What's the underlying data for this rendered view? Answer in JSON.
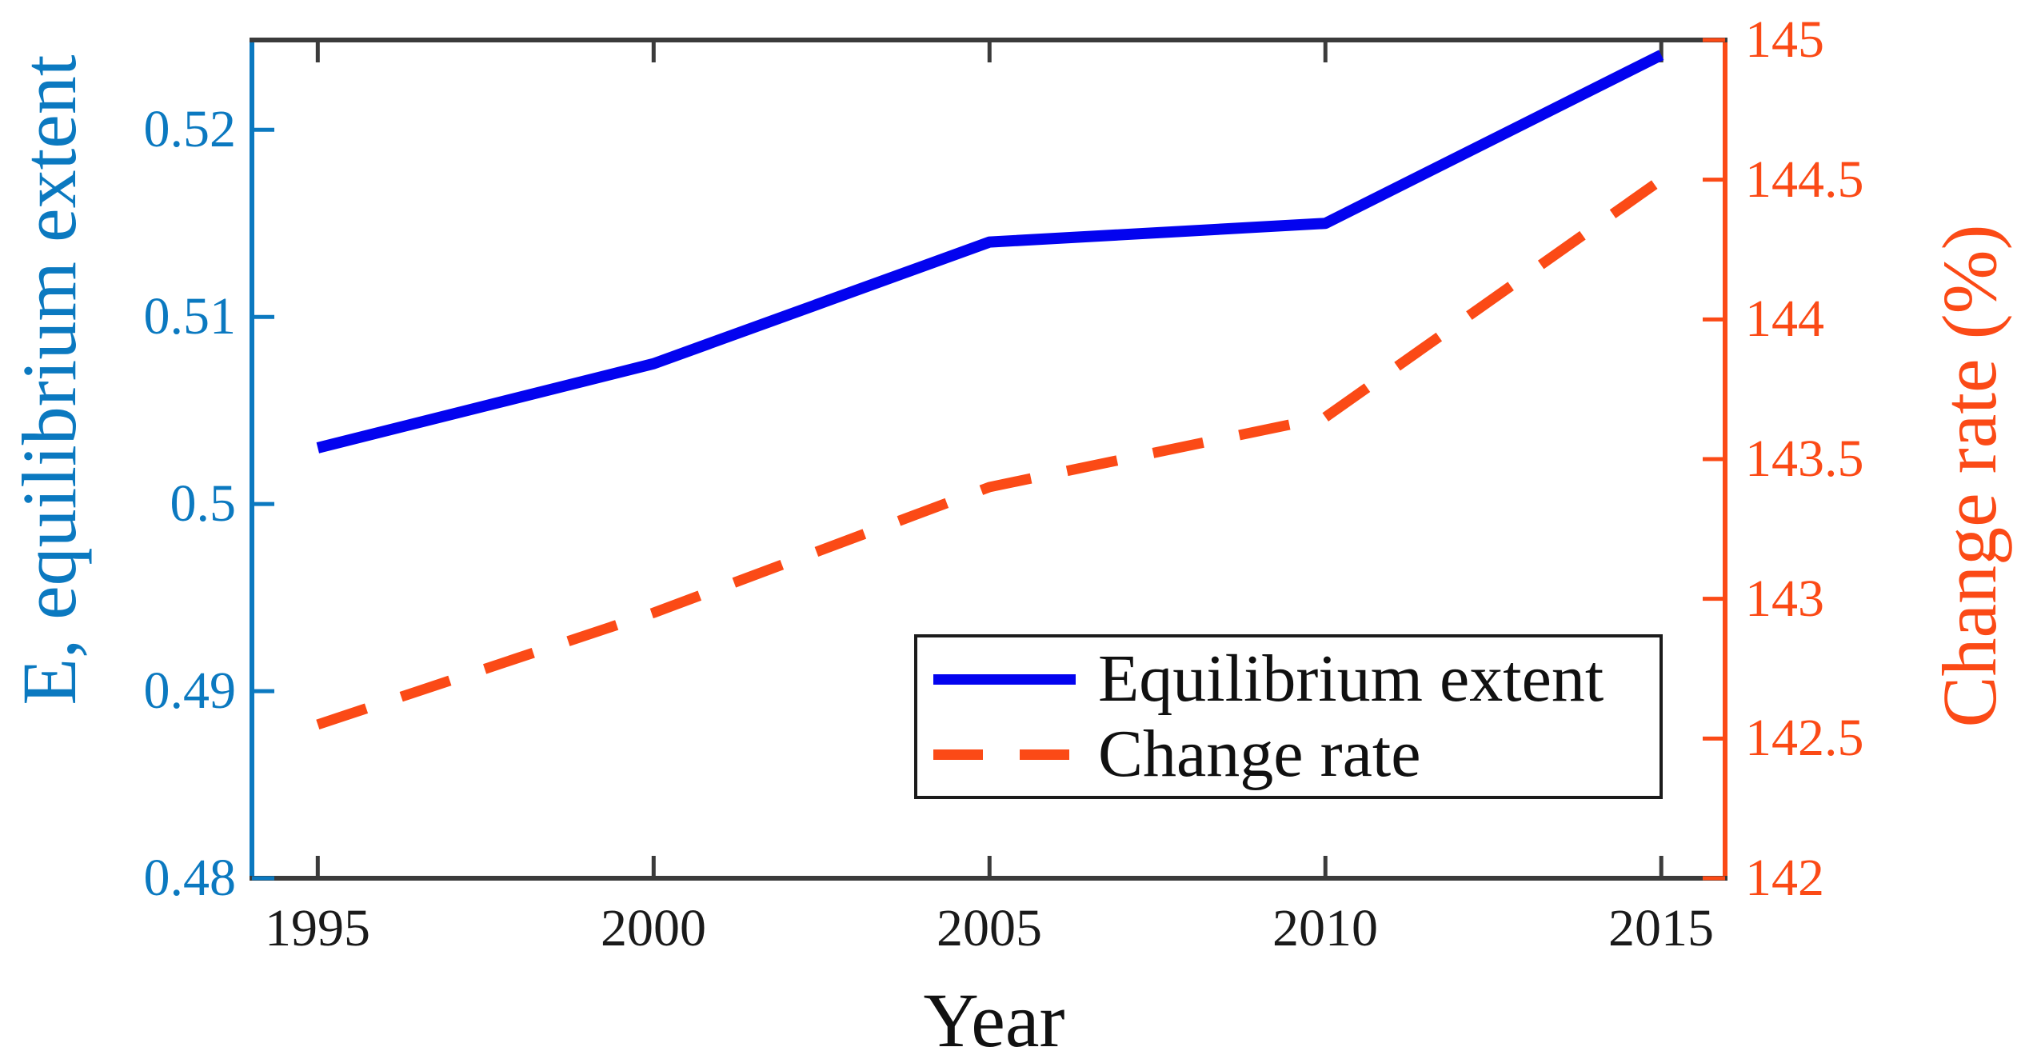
{
  "chart_data": {
    "type": "line",
    "x": [
      1995,
      2000,
      2005,
      2010,
      2015
    ],
    "x_ticks": [
      "1995",
      "2000",
      "2005",
      "2010",
      "2015"
    ],
    "xlabel": "Year",
    "x_range": [
      1994.02,
      2015.95
    ],
    "grid": false,
    "series": [
      {
        "name": "Equilibrium extent",
        "axis": "left",
        "style": "solid",
        "color": "#0303ef",
        "values": [
          0.503,
          0.5075,
          0.514,
          0.515,
          0.524
        ]
      },
      {
        "name": "Change rate",
        "axis": "right",
        "style": "dashed",
        "color": "#fb4a16",
        "values": [
          142.55,
          142.95,
          143.4,
          143.65,
          144.5
        ]
      }
    ],
    "left_axis": {
      "label": "E, equilibrium extent",
      "color": "#0b79c0",
      "ticks": [
        0.48,
        0.49,
        0.5,
        0.51,
        0.52
      ],
      "tick_labels": [
        "0.48",
        "0.49",
        "0.5",
        "0.51",
        "0.52"
      ],
      "range": [
        0.48,
        0.5248
      ]
    },
    "right_axis": {
      "label": "Change rate (%)",
      "color": "#fb4a16",
      "ticks": [
        142,
        142.5,
        143,
        143.5,
        144,
        144.5,
        145
      ],
      "tick_labels": [
        "142",
        "142.5",
        "143",
        "143.5",
        "144",
        "144.5",
        "145"
      ],
      "range": [
        142,
        145
      ]
    },
    "legend": {
      "position": "inside-lower-right",
      "entries": [
        "Equilibrium extent",
        "Change rate"
      ]
    },
    "spine_color_x": "#3b3b3b"
  }
}
